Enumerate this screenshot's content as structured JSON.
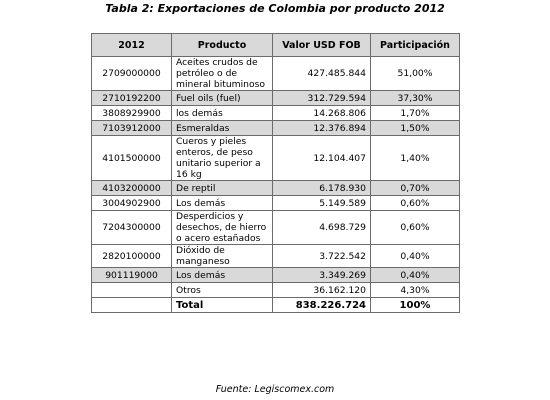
{
  "caption": "Tabla 2: Exportaciones de Colombia por producto 2012",
  "headers": [
    "2012",
    "Producto",
    "Valor USD FOB",
    "Participación"
  ],
  "rows": [
    {
      "code": "2709000000",
      "product": "Aceites crudos de petróleo o de mineral bituminoso",
      "value": "427.485.844",
      "share": "51,00%",
      "shaded": false
    },
    {
      "code": "2710192200",
      "product": "Fuel oils (fuel)",
      "value": "312.729.594",
      "share": "37,30%",
      "shaded": true
    },
    {
      "code": "3808929900",
      "product": "los demás",
      "value": "14.268.806",
      "share": "1,70%",
      "shaded": false
    },
    {
      "code": "7103912000",
      "product": "Esmeraldas",
      "value": "12.376.894",
      "share": "1,50%",
      "shaded": true
    },
    {
      "code": "4101500000",
      "product": "Cueros y pieles enteros, de peso unitario superior a 16 kg",
      "value": "12.104.407",
      "share": "1,40%",
      "shaded": false
    },
    {
      "code": "4103200000",
      "product": "De reptil",
      "value": "6.178.930",
      "share": "0,70%",
      "shaded": true
    },
    {
      "code": "3004902900",
      "product": "Los demás",
      "value": "5.149.589",
      "share": "0,60%",
      "shaded": false
    },
    {
      "code": "7204300000",
      "product": "Desperdicios y desechos, de hierro o acero estañados",
      "value": "4.698.729",
      "share": "0,60%",
      "shaded": false
    },
    {
      "code": "2820100000",
      "product": "Dióxido de manganeso",
      "value": "3.722.542",
      "share": "0,40%",
      "shaded": false
    },
    {
      "code": "901119000",
      "product": "Los demás",
      "value": "3.349.269",
      "share": "0,40%",
      "shaded": true
    },
    {
      "code": "",
      "product": "Otros",
      "value": "36.162.120",
      "share": "4,30%",
      "shaded": false
    }
  ],
  "total": {
    "label": "Total",
    "value": "838.226.724",
    "share": "100%"
  },
  "source": "Fuente: Legiscomex.com"
}
